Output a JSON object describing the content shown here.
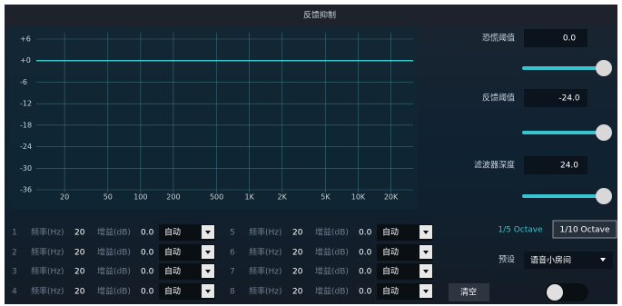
{
  "title": "反馈抑制",
  "chart_data": {
    "type": "line",
    "log_x": true,
    "grid": true,
    "xlim": [
      11,
      32000
    ],
    "ylim": [
      -36,
      6
    ],
    "xticks": [
      20,
      50,
      100,
      200,
      500,
      {
        "value": 1000,
        "label": "1K"
      },
      {
        "value": 2000,
        "label": "2K"
      },
      {
        "value": 5000,
        "label": "5K"
      },
      {
        "value": 10000,
        "label": "10K"
      },
      {
        "value": 20000,
        "label": "20K"
      }
    ],
    "yticks": [
      {
        "value": 6,
        "label": "+6"
      },
      {
        "value": 0,
        "label": "+0"
      },
      -6,
      -12,
      -18,
      -24,
      -30,
      -36
    ],
    "series": [
      {
        "color": "#3ec8cc",
        "x": [
          11,
          32000
        ],
        "values": [
          0,
          0
        ]
      }
    ]
  },
  "controls": [
    {
      "label": "恐慌阈值",
      "value": "0.0"
    },
    {
      "label": "反馈阈值",
      "value": "-24.0"
    },
    {
      "label": "滤波器深度",
      "value": "24.0"
    }
  ],
  "octave": [
    "1/5 Octave",
    "1/10 Octave"
  ],
  "preset": {
    "label": "预设",
    "value": "语音小房间"
  },
  "clear": "清空",
  "filters": [
    {
      "index": "1",
      "freq_label": "频率(Hz)",
      "freq": "20",
      "gain_label": "增益(dB)",
      "gain": "0.0",
      "mode": "自动"
    },
    {
      "index": "2",
      "freq_label": "频率(Hz)",
      "freq": "20",
      "gain_label": "增益(dB)",
      "gain": "0.0",
      "mode": "自动"
    },
    {
      "index": "3",
      "freq_label": "频率(Hz)",
      "freq": "20",
      "gain_label": "增益(dB)",
      "gain": "0.0",
      "mode": "自动"
    },
    {
      "index": "4",
      "freq_label": "频率(Hz)",
      "freq": "20",
      "gain_label": "增益(dB)",
      "gain": "0.0",
      "mode": "自动"
    },
    {
      "index": "5",
      "freq_label": "频率(Hz)",
      "freq": "20",
      "gain_label": "增益(dB)",
      "gain": "0.0",
      "mode": "自动"
    },
    {
      "index": "6",
      "freq_label": "频率(Hz)",
      "freq": "20",
      "gain_label": "增益(dB)",
      "gain": "0.0",
      "mode": "自动"
    },
    {
      "index": "7",
      "freq_label": "频率(Hz)",
      "freq": "20",
      "gain_label": "增益(dB)",
      "gain": "0.0",
      "mode": "自动"
    },
    {
      "index": "8",
      "freq_label": "频率(Hz)",
      "freq": "20",
      "gain_label": "增益(dB)",
      "gain": "0.0",
      "mode": "自动"
    }
  ]
}
